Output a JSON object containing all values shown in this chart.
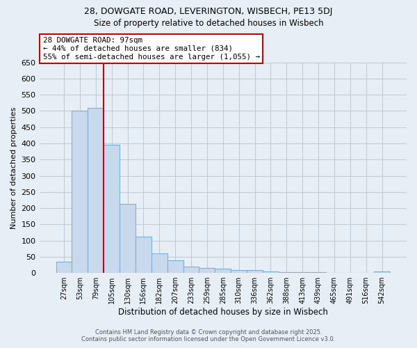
{
  "title_line1": "28, DOWGATE ROAD, LEVERINGTON, WISBECH, PE13 5DJ",
  "title_line2": "Size of property relative to detached houses in Wisbech",
  "xlabel": "Distribution of detached houses by size in Wisbech",
  "ylabel": "Number of detached properties",
  "categories": [
    "27sqm",
    "53sqm",
    "79sqm",
    "105sqm",
    "130sqm",
    "156sqm",
    "182sqm",
    "207sqm",
    "233sqm",
    "259sqm",
    "285sqm",
    "310sqm",
    "336sqm",
    "362sqm",
    "388sqm",
    "413sqm",
    "439sqm",
    "465sqm",
    "491sqm",
    "516sqm",
    "542sqm"
  ],
  "values": [
    35,
    500,
    510,
    395,
    213,
    112,
    60,
    40,
    20,
    16,
    13,
    10,
    10,
    5,
    3,
    3,
    2,
    1,
    1,
    1,
    5
  ],
  "bar_color": "#c8d9ee",
  "bar_edge_color": "#7bafd4",
  "red_line_x": 2.5,
  "annotation_text": "28 DOWGATE ROAD: 97sqm\n← 44% of detached houses are smaller (834)\n55% of semi-detached houses are larger (1,055) →",
  "annotation_box_color": "#ffffff",
  "annotation_box_edge_color": "#cc0000",
  "ylim": [
    0,
    650
  ],
  "yticks": [
    0,
    50,
    100,
    150,
    200,
    250,
    300,
    350,
    400,
    450,
    500,
    550,
    600,
    650
  ],
  "footer_line1": "Contains HM Land Registry data © Crown copyright and database right 2025.",
  "footer_line2": "Contains public sector information licensed under the Open Government Licence v3.0.",
  "bg_color": "#e8eef5",
  "plot_bg_color": "#e8eef5",
  "grid_color": "#c0ccd8"
}
